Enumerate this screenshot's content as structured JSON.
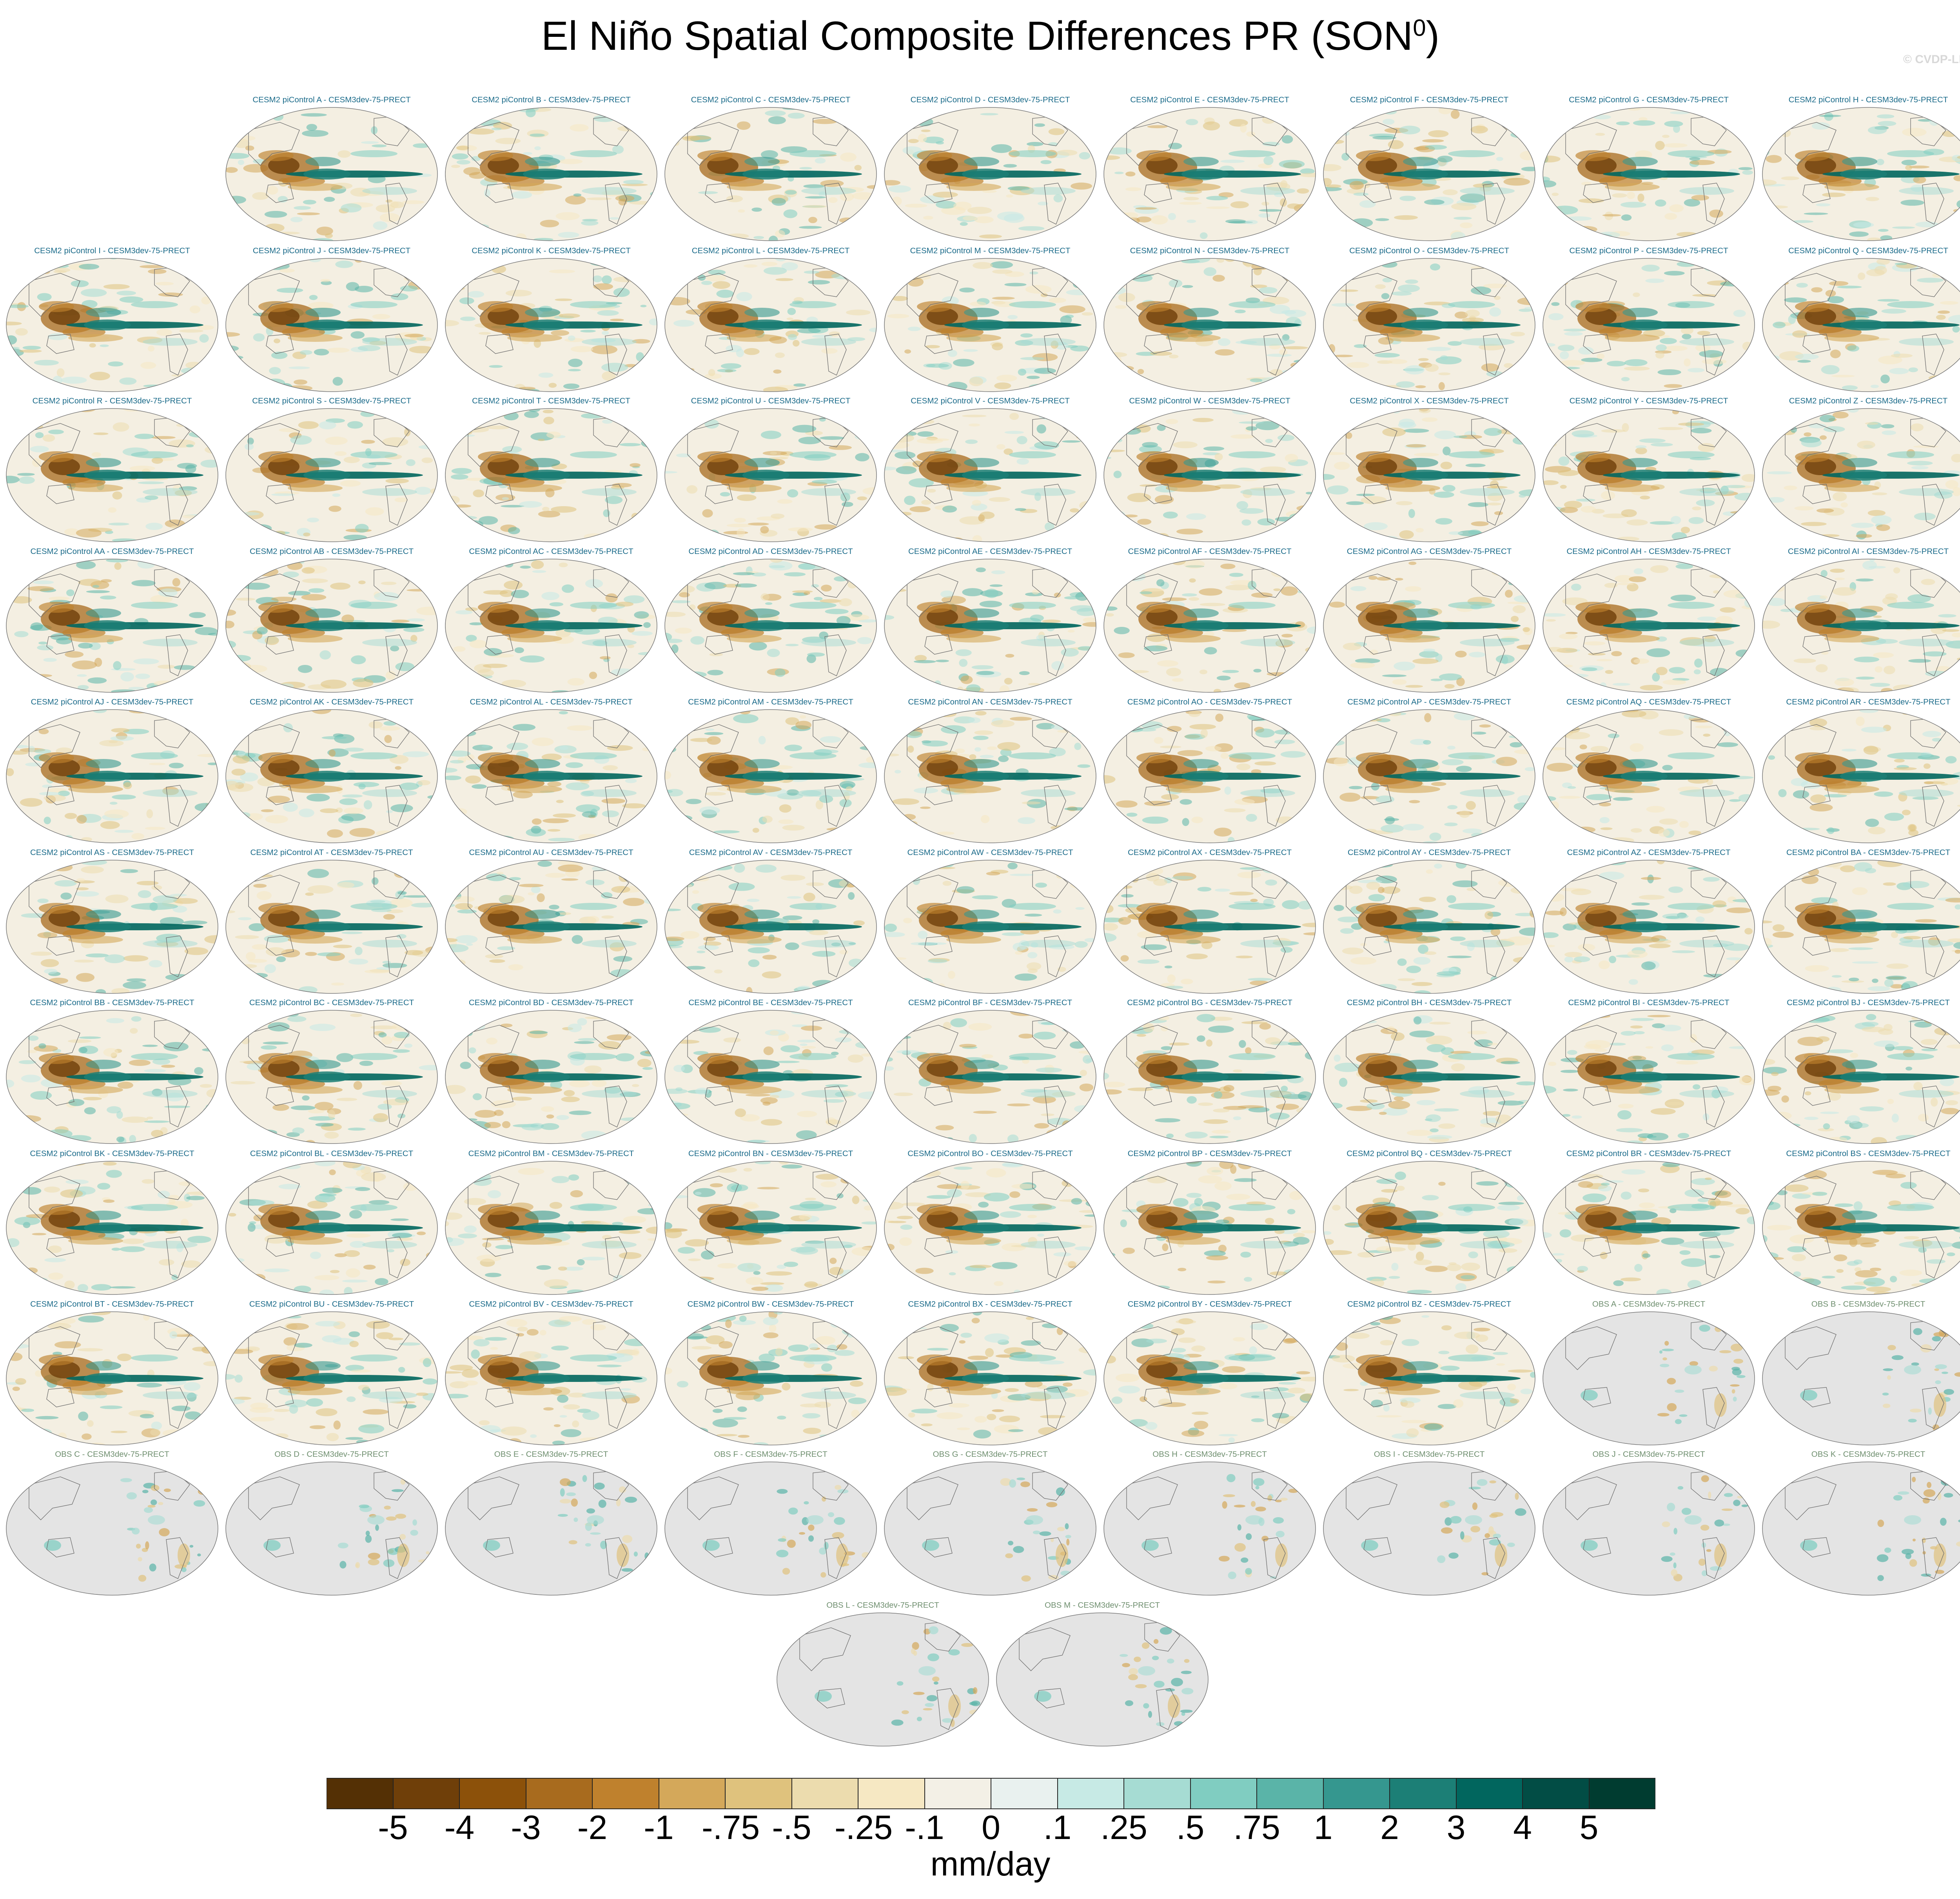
{
  "chart_data": {
    "type": "heatmap",
    "title": "El Niño Spatial Composite Differences PR (SON",
    "title_superscript": "0",
    "title_close": ")",
    "watermark": "© CVDP-LE",
    "units": "mm/day",
    "colorbar": {
      "labels": [
        "-5",
        "-4",
        "-3",
        "-2",
        "-1",
        "-.75",
        "-.5",
        "-.25",
        "-.1",
        "0",
        ".1",
        ".25",
        ".5",
        ".75",
        "1",
        "2",
        "3",
        "4",
        "5"
      ],
      "colors": [
        "#543005",
        "#6f3f09",
        "#8c510a",
        "#a86b1e",
        "#bf812d",
        "#d4a85a",
        "#dfc27d",
        "#ecdcae",
        "#f6e8c3",
        "#f3f0e6",
        "#e9f1ef",
        "#c7eae5",
        "#a6dcd3",
        "#80cdc1",
        "#5ab4a8",
        "#35978f",
        "#1c7f76",
        "#01665e",
        "#024d45",
        "#003c30"
      ]
    },
    "panels": [
      "CESM2 piControl A - CESM3dev-75-PRECT",
      "CESM2 piControl B - CESM3dev-75-PRECT",
      "CESM2 piControl C - CESM3dev-75-PRECT",
      "CESM2 piControl D - CESM3dev-75-PRECT",
      "CESM2 piControl E - CESM3dev-75-PRECT",
      "CESM2 piControl F - CESM3dev-75-PRECT",
      "CESM2 piControl G - CESM3dev-75-PRECT",
      "CESM2 piControl H - CESM3dev-75-PRECT",
      "CESM2 piControl I - CESM3dev-75-PRECT",
      "CESM2 piControl J - CESM3dev-75-PRECT",
      "CESM2 piControl K - CESM3dev-75-PRECT",
      "CESM2 piControl L - CESM3dev-75-PRECT",
      "CESM2 piControl M - CESM3dev-75-PRECT",
      "CESM2 piControl N - CESM3dev-75-PRECT",
      "CESM2 piControl O - CESM3dev-75-PRECT",
      "CESM2 piControl P - CESM3dev-75-PRECT",
      "CESM2 piControl Q - CESM3dev-75-PRECT",
      "CESM2 piControl R - CESM3dev-75-PRECT",
      "CESM2 piControl S - CESM3dev-75-PRECT",
      "CESM2 piControl T - CESM3dev-75-PRECT",
      "CESM2 piControl U - CESM3dev-75-PRECT",
      "CESM2 piControl V - CESM3dev-75-PRECT",
      "CESM2 piControl W - CESM3dev-75-PRECT",
      "CESM2 piControl X - CESM3dev-75-PRECT",
      "CESM2 piControl Y - CESM3dev-75-PRECT",
      "CESM2 piControl Z - CESM3dev-75-PRECT",
      "CESM2 piControl AA - CESM3dev-75-PRECT",
      "CESM2 piControl AB - CESM3dev-75-PRECT",
      "CESM2 piControl AC - CESM3dev-75-PRECT",
      "CESM2 piControl AD - CESM3dev-75-PRECT",
      "CESM2 piControl AE - CESM3dev-75-PRECT",
      "CESM2 piControl AF - CESM3dev-75-PRECT",
      "CESM2 piControl AG - CESM3dev-75-PRECT",
      "CESM2 piControl AH - CESM3dev-75-PRECT",
      "CESM2 piControl AI - CESM3dev-75-PRECT",
      "CESM2 piControl AJ - CESM3dev-75-PRECT",
      "CESM2 piControl AK - CESM3dev-75-PRECT",
      "CESM2 piControl AL - CESM3dev-75-PRECT",
      "CESM2 piControl AM - CESM3dev-75-PRECT",
      "CESM2 piControl AN - CESM3dev-75-PRECT",
      "CESM2 piControl AO - CESM3dev-75-PRECT",
      "CESM2 piControl AP - CESM3dev-75-PRECT",
      "CESM2 piControl AQ - CESM3dev-75-PRECT",
      "CESM2 piControl AR - CESM3dev-75-PRECT",
      "CESM2 piControl AS - CESM3dev-75-PRECT",
      "CESM2 piControl AT - CESM3dev-75-PRECT",
      "CESM2 piControl AU - CESM3dev-75-PRECT",
      "CESM2 piControl AV - CESM3dev-75-PRECT",
      "CESM2 piControl AW - CESM3dev-75-PRECT",
      "CESM2 piControl AX - CESM3dev-75-PRECT",
      "CESM2 piControl AY - CESM3dev-75-PRECT",
      "CESM2 piControl AZ - CESM3dev-75-PRECT",
      "CESM2 piControl BA - CESM3dev-75-PRECT",
      "CESM2 piControl BB - CESM3dev-75-PRECT",
      "CESM2 piControl BC - CESM3dev-75-PRECT",
      "CESM2 piControl BD - CESM3dev-75-PRECT",
      "CESM2 piControl BE - CESM3dev-75-PRECT",
      "CESM2 piControl BF - CESM3dev-75-PRECT",
      "CESM2 piControl BG - CESM3dev-75-PRECT",
      "CESM2 piControl BH - CESM3dev-75-PRECT",
      "CESM2 piControl BI - CESM3dev-75-PRECT",
      "CESM2 piControl BJ - CESM3dev-75-PRECT",
      "CESM2 piControl BK - CESM3dev-75-PRECT",
      "CESM2 piControl BL - CESM3dev-75-PRECT",
      "CESM2 piControl BM - CESM3dev-75-PRECT",
      "CESM2 piControl BN - CESM3dev-75-PRECT",
      "CESM2 piControl BO - CESM3dev-75-PRECT",
      "CESM2 piControl BP - CESM3dev-75-PRECT",
      "CESM2 piControl BQ - CESM3dev-75-PRECT",
      "CESM2 piControl BR - CESM3dev-75-PRECT",
      "CESM2 piControl BS - CESM3dev-75-PRECT",
      "CESM2 piControl BT - CESM3dev-75-PRECT",
      "CESM2 piControl BU - CESM3dev-75-PRECT",
      "CESM2 piControl BV - CESM3dev-75-PRECT",
      "CESM2 piControl BW - CESM3dev-75-PRECT",
      "CESM2 piControl BX - CESM3dev-75-PRECT",
      "CESM2 piControl BY - CESM3dev-75-PRECT",
      "CESM2 piControl BZ - CESM3dev-75-PRECT",
      "OBS A - CESM3dev-75-PRECT",
      "OBS B - CESM3dev-75-PRECT",
      "OBS C - CESM3dev-75-PRECT",
      "OBS D - CESM3dev-75-PRECT",
      "OBS E - CESM3dev-75-PRECT",
      "OBS F - CESM3dev-75-PRECT",
      "OBS G - CESM3dev-75-PRECT",
      "OBS H - CESM3dev-75-PRECT",
      "OBS I - CESM3dev-75-PRECT",
      "OBS J - CESM3dev-75-PRECT",
      "OBS K - CESM3dev-75-PRECT",
      "OBS L - CESM3dev-75-PRECT",
      "OBS M - CESM3dev-75-PRECT"
    ]
  }
}
